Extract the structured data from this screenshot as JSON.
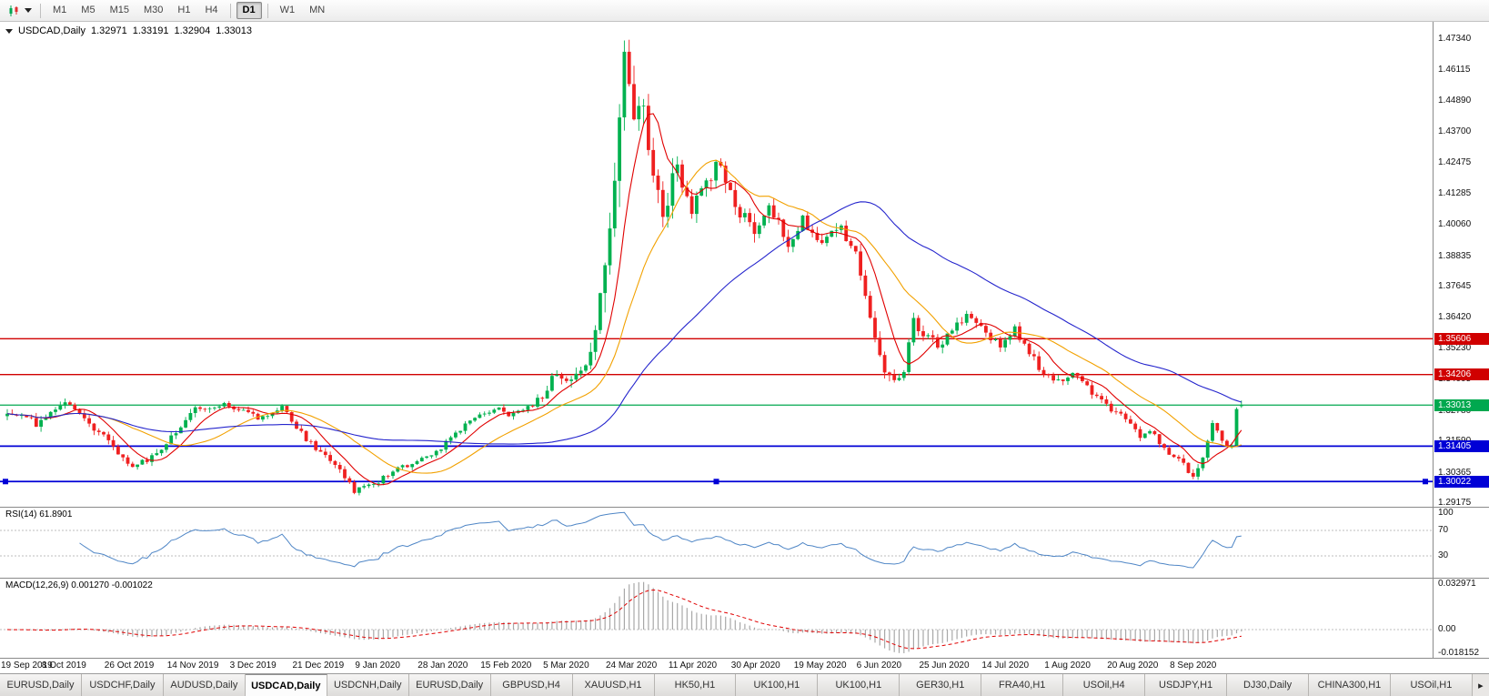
{
  "toolbar": {
    "timeframes": [
      "M1",
      "M5",
      "M15",
      "M30",
      "H1",
      "H4",
      "D1",
      "W1",
      "MN"
    ],
    "active_timeframe": "D1"
  },
  "chart_header": {
    "symbol": "USDCAD,Daily",
    "open": "1.32971",
    "high": "1.33191",
    "low": "1.32904",
    "close": "1.33013"
  },
  "price_scale": [
    "1.47340",
    "1.46115",
    "1.44890",
    "1.43700",
    "1.42475",
    "1.41285",
    "1.40060",
    "1.38835",
    "1.37645",
    "1.36420",
    "1.35230",
    "1.34005",
    "1.32780",
    "1.31590",
    "1.30365",
    "1.29175"
  ],
  "chart_data": {
    "type": "candlestick",
    "symbol": "USDCAD",
    "timeframe": "Daily",
    "days": 257,
    "x_label_step_days": 13,
    "visible_price_range": [
      1.29,
      1.48
    ],
    "current_bar": {
      "open": 1.32971,
      "high": 1.33191,
      "low": 1.32904,
      "close": 1.33013
    },
    "candle_colors": {
      "up": "#00b14f",
      "down": "#ef2020"
    },
    "moving_averages": [
      {
        "period": 8,
        "color": "#e00000"
      },
      {
        "period": 21,
        "color": "#f2a100"
      },
      {
        "period": 55,
        "color": "#2525cd"
      }
    ],
    "horizontal_lines": [
      {
        "price": 1.35606,
        "label": "1.35606",
        "color": "#d00000",
        "width": 1.3
      },
      {
        "price": 1.34206,
        "label": "1.34206",
        "color": "#d00000",
        "width": 1.3
      },
      {
        "price": 1.33013,
        "label": "1.33013",
        "color": "#00a84f",
        "width": 1.3
      },
      {
        "price": 1.31405,
        "label": "1.31405",
        "color": "#0000d6",
        "width": 1.8
      },
      {
        "price": 1.30022,
        "label": "1.30022",
        "color": "#0000d6",
        "width": 1.8,
        "selected": true
      }
    ],
    "x_labels": [
      "19 Sep 2019",
      "8 Oct 2019",
      "26 Oct 2019",
      "14 Nov 2019",
      "3 Dec 2019",
      "21 Dec 2019",
      "9 Jan 2020",
      "28 Jan 2020",
      "15 Feb 2020",
      "5 Mar 2020",
      "24 Mar 2020",
      "11 Apr 2020",
      "30 Apr 2020",
      "19 May 2020",
      "6 Jun 2020",
      "25 Jun 2020",
      "14 Jul 2020",
      "1 Aug 2020",
      "20 Aug 2020",
      "8 Sep 2020"
    ],
    "price_anchors": [
      [
        0,
        1.3265,
        0.0035
      ],
      [
        6,
        1.323,
        0.0035
      ],
      [
        12,
        1.3325,
        0.003
      ],
      [
        19,
        1.3195,
        0.003
      ],
      [
        26,
        1.3055,
        0.0028
      ],
      [
        31,
        1.3115,
        0.0028
      ],
      [
        39,
        1.3285,
        0.0028
      ],
      [
        45,
        1.33,
        0.0026
      ],
      [
        52,
        1.3255,
        0.0024
      ],
      [
        57,
        1.329,
        0.0024
      ],
      [
        62,
        1.3165,
        0.0026
      ],
      [
        68,
        1.307,
        0.0026
      ],
      [
        72,
        1.2962,
        0.0024
      ],
      [
        76,
        1.299,
        0.0022
      ],
      [
        81,
        1.3055,
        0.0022
      ],
      [
        88,
        1.31,
        0.0022
      ],
      [
        96,
        1.3245,
        0.0022
      ],
      [
        101,
        1.329,
        0.0022
      ],
      [
        105,
        1.326,
        0.0024
      ],
      [
        111,
        1.333,
        0.003
      ],
      [
        114,
        1.3435,
        0.004
      ],
      [
        117,
        1.3395,
        0.0045
      ],
      [
        120,
        1.344,
        0.006
      ],
      [
        123,
        1.372,
        0.011
      ],
      [
        125,
        1.401,
        0.015
      ],
      [
        127,
        1.448,
        0.019
      ],
      [
        128,
        1.463,
        0.016
      ],
      [
        130,
        1.4415,
        0.015
      ],
      [
        132,
        1.45,
        0.013
      ],
      [
        134,
        1.4175,
        0.012
      ],
      [
        136,
        1.4075,
        0.011
      ],
      [
        139,
        1.4225,
        0.0095
      ],
      [
        142,
        1.4085,
        0.0085
      ],
      [
        145,
        1.416,
        0.0075
      ],
      [
        148,
        1.4255,
        0.007
      ],
      [
        151,
        1.4075,
        0.0065
      ],
      [
        155,
        1.3985,
        0.0058
      ],
      [
        158,
        1.407,
        0.0054
      ],
      [
        162,
        1.394,
        0.005
      ],
      [
        165,
        1.4025,
        0.0048
      ],
      [
        169,
        1.393,
        0.0048
      ],
      [
        173,
        1.3995,
        0.0046
      ],
      [
        176,
        1.388,
        0.005
      ],
      [
        178,
        1.372,
        0.0054
      ],
      [
        180,
        1.356,
        0.005
      ],
      [
        182,
        1.342,
        0.0048
      ],
      [
        184,
        1.339,
        0.0044
      ],
      [
        186,
        1.3425,
        0.0044
      ],
      [
        188,
        1.363,
        0.0044
      ],
      [
        191,
        1.356,
        0.004
      ],
      [
        194,
        1.353,
        0.0038
      ],
      [
        196,
        1.3605,
        0.0036
      ],
      [
        199,
        1.3645,
        0.0036
      ],
      [
        203,
        1.3585,
        0.0034
      ],
      [
        206,
        1.3525,
        0.0032
      ],
      [
        209,
        1.3595,
        0.0032
      ],
      [
        212,
        1.351,
        0.0032
      ],
      [
        215,
        1.3415,
        0.0032
      ],
      [
        218,
        1.339,
        0.003
      ],
      [
        221,
        1.342,
        0.003
      ],
      [
        223,
        1.3385,
        0.003
      ],
      [
        226,
        1.333,
        0.0028
      ],
      [
        229,
        1.3285,
        0.0028
      ],
      [
        232,
        1.325,
        0.0026
      ],
      [
        235,
        1.318,
        0.0026
      ],
      [
        237,
        1.3205,
        0.0026
      ],
      [
        239,
        1.316,
        0.0026
      ],
      [
        241,
        1.3115,
        0.0026
      ],
      [
        243,
        1.3085,
        0.0026
      ],
      [
        245,
        1.3045,
        0.0026
      ],
      [
        246,
        1.302,
        0.0026
      ],
      [
        248,
        1.3105,
        0.0028
      ],
      [
        250,
        1.323,
        0.0028
      ],
      [
        252,
        1.317,
        0.0026
      ],
      [
        253,
        1.313,
        0.0026
      ],
      [
        254,
        1.3155,
        0.0026
      ],
      [
        255,
        1.3297,
        0.0028
      ],
      [
        256,
        1.33013,
        0.0008
      ]
    ]
  },
  "rsi": {
    "label": "RSI(14) 61.8901",
    "period": 14,
    "value": 61.8901,
    "levels": [
      70,
      30
    ],
    "scale_labels": [
      {
        "text": "100",
        "value": 100
      },
      {
        "text": "70",
        "value": 70
      },
      {
        "text": "30",
        "value": 30
      }
    ],
    "line_color": "#4f86c6"
  },
  "macd": {
    "label": "MACD(12,26,9) 0.001270 -0.001022",
    "fast": 12,
    "slow": 26,
    "signal": 9,
    "value": 0.00127,
    "signal_value": -0.001022,
    "scale_labels": [
      {
        "text": "0.032971",
        "value": 0.032971
      },
      {
        "text": "0.00",
        "value": 0
      },
      {
        "text": "-0.018152",
        "value": -0.018152
      }
    ],
    "histogram_color": "#a8a8a8",
    "signal_color": "#e00000"
  },
  "tabs": {
    "scroll_icon": "▸",
    "items": [
      {
        "label": "EURUSD,Daily"
      },
      {
        "label": "USDCHF,Daily"
      },
      {
        "label": "AUDUSD,Daily"
      },
      {
        "label": "USDCAD,Daily",
        "active": true
      },
      {
        "label": "USDCNH,Daily"
      },
      {
        "label": "EURUSD,Daily"
      },
      {
        "label": "GBPUSD,H4"
      },
      {
        "label": "XAUUSD,H1"
      },
      {
        "label": "HK50,H1"
      },
      {
        "label": "UK100,H1"
      },
      {
        "label": "UK100,H1"
      },
      {
        "label": "GER30,H1"
      },
      {
        "label": "FRA40,H1"
      },
      {
        "label": "USOil,H4"
      },
      {
        "label": "USDJPY,H1"
      },
      {
        "label": "DJ30,Daily"
      },
      {
        "label": "CHINA300,H1"
      },
      {
        "label": "USOil,H1"
      }
    ]
  }
}
